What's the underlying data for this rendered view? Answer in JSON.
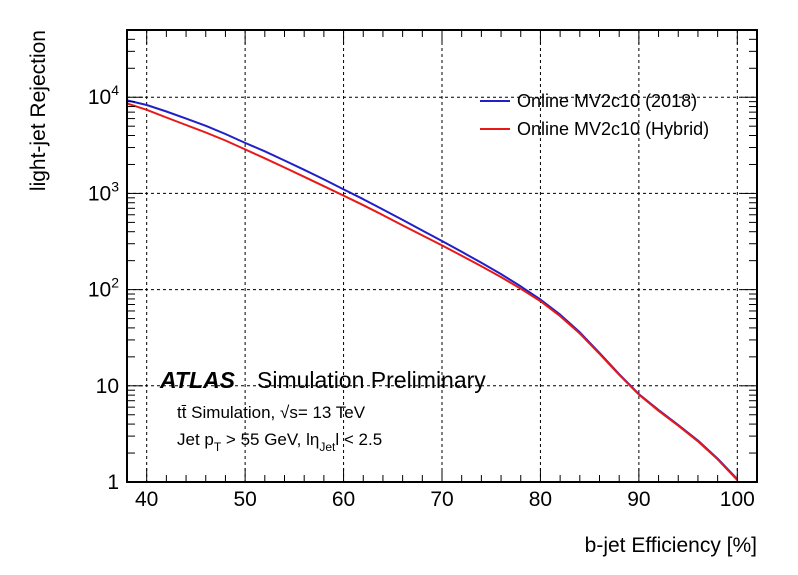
{
  "chart_data": {
    "type": "line",
    "title": "",
    "xlabel": "b-jet Efficiency [%]",
    "ylabel": "light-jet Rejection",
    "xlim": [
      38,
      102
    ],
    "ylim": [
      1,
      50000
    ],
    "yscale": "log",
    "grid": true,
    "legend_position": "top-right",
    "x_ticks": [
      40,
      50,
      60,
      70,
      80,
      90,
      100
    ],
    "y_ticks": [
      {
        "value": 1,
        "base": "1",
        "exp": ""
      },
      {
        "value": 10,
        "base": "10",
        "exp": ""
      },
      {
        "value": 100,
        "base": "10",
        "exp": "2"
      },
      {
        "value": 1000,
        "base": "10",
        "exp": "3"
      },
      {
        "value": 10000,
        "base": "10",
        "exp": "4"
      }
    ],
    "series": [
      {
        "name": "Online MV2c10 (2018)",
        "color": "#2020c8",
        "x": [
          38,
          40,
          42,
          44,
          46,
          48,
          50,
          52,
          54,
          56,
          58,
          60,
          62,
          64,
          66,
          68,
          70,
          72,
          74,
          76,
          78,
          80,
          82,
          84,
          86,
          88,
          90,
          92,
          94,
          96,
          98,
          100
        ],
        "y": [
          9300,
          8300,
          7100,
          6000,
          5050,
          4150,
          3350,
          2740,
          2200,
          1760,
          1400,
          1100,
          870,
          680,
          530,
          412,
          320,
          247,
          190,
          145,
          108,
          79,
          55,
          36,
          22,
          13.2,
          8.2,
          5.6,
          3.9,
          2.7,
          1.75,
          1.07
        ]
      },
      {
        "name": "Online MV2c10 (Hybrid)",
        "color": "#e81818",
        "x": [
          38,
          40,
          42,
          44,
          46,
          48,
          50,
          52,
          54,
          56,
          58,
          60,
          62,
          64,
          66,
          68,
          70,
          72,
          74,
          76,
          78,
          80,
          82,
          84,
          86,
          88,
          90,
          92,
          94,
          96,
          98,
          100
        ],
        "y": [
          8600,
          7400,
          6150,
          5150,
          4300,
          3550,
          2870,
          2320,
          1860,
          1490,
          1190,
          950,
          755,
          595,
          465,
          366,
          288,
          225,
          175,
          135,
          102,
          76,
          53,
          35,
          21.5,
          13,
          8.1,
          5.5,
          3.85,
          2.65,
          1.72,
          1.05
        ]
      }
    ]
  },
  "annotations": {
    "atlas": "ATLAS",
    "label": "Simulation Preliminary",
    "line1": "tt̄ Simulation, √s= 13 TeV",
    "line2": "Jet p",
    "line2_sub": "T",
    "line2_mid": " > 55 GeV, lη",
    "line2_sub2": "Jet",
    "line2_end": "l < 2.5"
  }
}
